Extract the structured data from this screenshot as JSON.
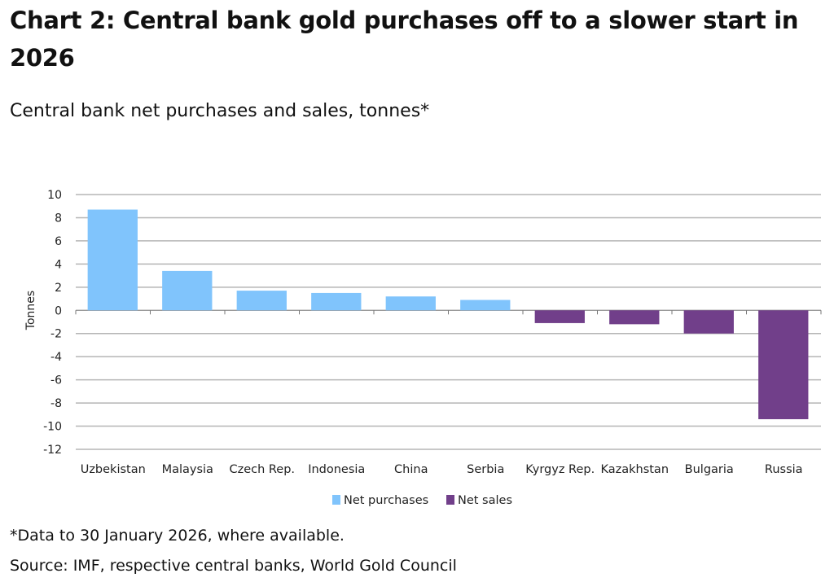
{
  "header": {
    "title": "Chart 2: Central bank gold purchases off to a slower start in 2026",
    "subtitle": "Central bank net purchases and sales, tonnes*"
  },
  "footer": {
    "note": "*Data to 30 January 2026, where available.",
    "source": "Source: IMF, respective central banks, World Gold Council"
  },
  "chart_data": {
    "type": "bar",
    "title": "Central bank net purchases and sales, tonnes*",
    "xlabel": "",
    "ylabel": "Tonnes",
    "ylim": [
      -12,
      10
    ],
    "yticks": [
      10,
      8,
      6,
      4,
      2,
      0,
      -2,
      -4,
      -6,
      -8,
      -10,
      -12
    ],
    "grid": true,
    "legend_position": "bottom",
    "categories": [
      "Uzbekistan",
      "Malaysia",
      "Czech Rep.",
      "Indonesia",
      "China",
      "Serbia",
      "Kyrgyz Rep.",
      "Kazakhstan",
      "Bulgaria",
      "Russia"
    ],
    "values": [
      8.7,
      3.4,
      1.7,
      1.5,
      1.2,
      0.9,
      -1.1,
      -1.2,
      -2.0,
      -9.4
    ],
    "series": [
      {
        "name": "Net purchases",
        "color": "#80c4fc"
      },
      {
        "name": "Net sales",
        "color": "#713f8a"
      }
    ]
  }
}
